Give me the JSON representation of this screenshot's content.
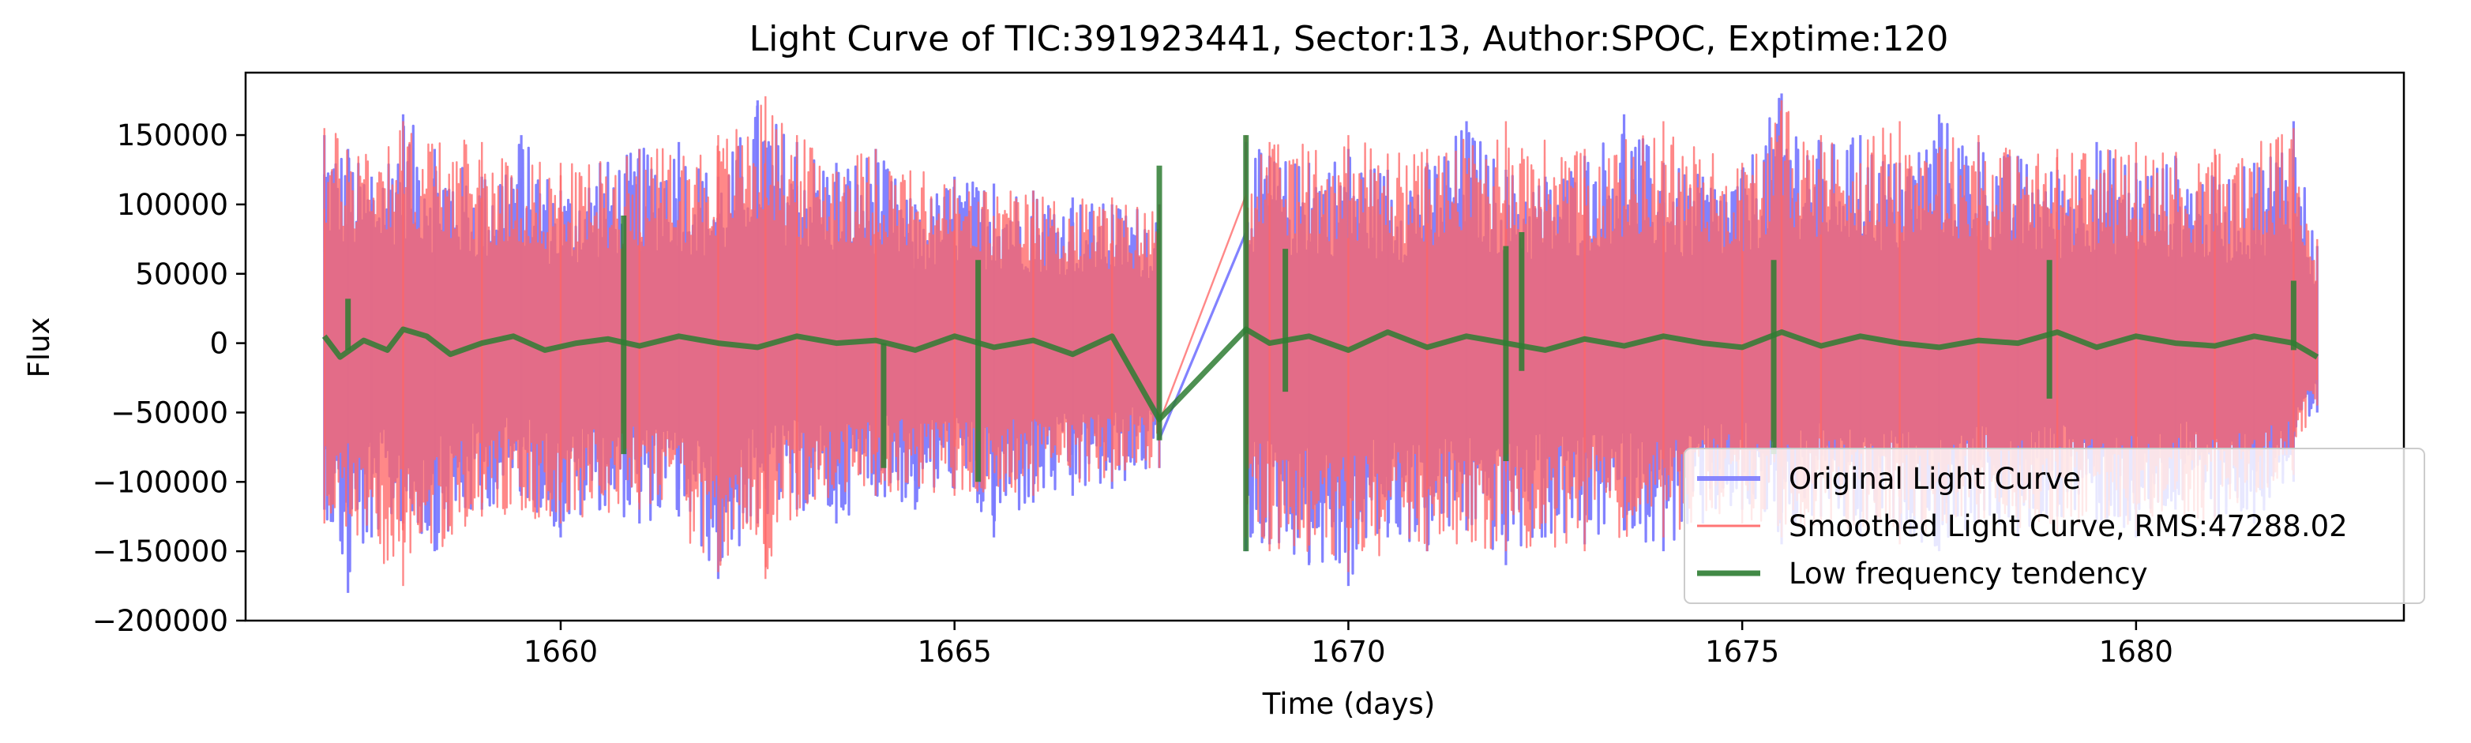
{
  "chart_data": {
    "type": "line",
    "title": "Light Curve of TIC:391923441, Sector:13, Author:SPOC, Exptime:120",
    "xlabel": "Time (days)",
    "ylabel": "Flux",
    "xlim": [
      1656.0,
      1683.4
    ],
    "ylim": [
      -200000,
      195000
    ],
    "xticks": [
      1660,
      1665,
      1670,
      1675,
      1680
    ],
    "xtick_labels": [
      "1660",
      "1665",
      "1670",
      "1675",
      "1680"
    ],
    "yticks": [
      -200000,
      -150000,
      -100000,
      -50000,
      0,
      50000,
      100000,
      150000
    ],
    "ytick_labels": [
      "−200000",
      "−150000",
      "−100000",
      "−50000",
      "0",
      "50000",
      "100000",
      "150000"
    ],
    "grid": false,
    "legend_position": "lower-right",
    "legend": [
      "Original Light Curve",
      "Smoothed Light Curve, RMS:47288.02",
      "Low frequency tendency"
    ],
    "colors": {
      "original": "#7b7bff",
      "smoothed": "#ff6666",
      "trend": "#2e7d32"
    },
    "segments": [
      [
        1657.0,
        1667.6
      ],
      [
        1668.7,
        1682.3
      ]
    ],
    "series": [
      {
        "name": "Original Light Curve",
        "x": [
          1657.0,
          1657.3,
          1657.6,
          1658.0,
          1658.4,
          1659.0,
          1659.5,
          1660.0,
          1660.5,
          1661.0,
          1661.5,
          1662.0,
          1662.5,
          1663.0,
          1663.5,
          1664.0,
          1664.5,
          1665.0,
          1665.5,
          1666.0,
          1666.5,
          1667.0,
          1667.6,
          1668.7,
          1669.0,
          1669.5,
          1670.0,
          1670.5,
          1671.0,
          1671.5,
          1672.0,
          1672.5,
          1673.0,
          1673.5,
          1674.0,
          1674.5,
          1675.0,
          1675.5,
          1676.0,
          1676.5,
          1677.0,
          1677.5,
          1678.0,
          1678.5,
          1679.0,
          1679.5,
          1680.0,
          1680.5,
          1681.0,
          1681.5,
          1682.0,
          1682.3
        ],
        "y_max": [
          150000,
          140000,
          120000,
          165000,
          140000,
          120000,
          150000,
          110000,
          130000,
          140000,
          145000,
          120000,
          175000,
          145000,
          130000,
          140000,
          100000,
          120000,
          115000,
          110000,
          105000,
          100000,
          100000,
          145000,
          135000,
          130000,
          140000,
          125000,
          130000,
          160000,
          125000,
          120000,
          135000,
          165000,
          130000,
          120000,
          125000,
          180000,
          145000,
          150000,
          130000,
          165000,
          145000,
          135000,
          125000,
          145000,
          130000,
          135000,
          120000,
          130000,
          160000,
          70000
        ],
        "y_min": [
          -120000,
          -180000,
          -140000,
          -130000,
          -150000,
          -120000,
          -110000,
          -140000,
          -120000,
          -130000,
          -125000,
          -170000,
          -130000,
          -120000,
          -130000,
          -110000,
          -120000,
          -105000,
          -140000,
          -115000,
          -110000,
          -105000,
          -90000,
          -150000,
          -145000,
          -160000,
          -175000,
          -140000,
          -150000,
          -135000,
          -160000,
          -140000,
          -145000,
          -135000,
          -150000,
          -130000,
          -120000,
          -145000,
          -125000,
          -140000,
          -135000,
          -150000,
          -130000,
          -140000,
          -125000,
          -130000,
          -140000,
          -120000,
          -125000,
          -130000,
          -100000,
          -50000
        ]
      },
      {
        "name": "Smoothed Light Curve, RMS:47288.02",
        "x": [
          1657.0,
          1658.0,
          1659.0,
          1660.0,
          1661.0,
          1662.0,
          1662.6,
          1663.0,
          1664.0,
          1665.0,
          1666.0,
          1667.0,
          1667.6,
          1668.7,
          1669.0,
          1670.0,
          1671.0,
          1672.0,
          1673.0,
          1674.0,
          1675.0,
          1675.5,
          1676.0,
          1677.0,
          1678.0,
          1679.0,
          1680.0,
          1681.0,
          1682.0,
          1682.3
        ],
        "y_max": [
          155000,
          160000,
          145000,
          130000,
          140000,
          150000,
          178000,
          150000,
          140000,
          118000,
          110000,
          105000,
          100000,
          150000,
          145000,
          150000,
          140000,
          160000,
          140000,
          160000,
          130000,
          175000,
          150000,
          160000,
          150000,
          140000,
          145000,
          140000,
          155000,
          75000
        ],
        "y_min": [
          -130000,
          -175000,
          -125000,
          -130000,
          -120000,
          -165000,
          -170000,
          -125000,
          -110000,
          -110000,
          -110000,
          -100000,
          -90000,
          -140000,
          -150000,
          -165000,
          -150000,
          -150000,
          -150000,
          -140000,
          -130000,
          -140000,
          -135000,
          -145000,
          -130000,
          -140000,
          -135000,
          -130000,
          -95000,
          -45000
        ]
      },
      {
        "name": "Low frequency tendency",
        "x": [
          1657.0,
          1657.2,
          1657.5,
          1657.8,
          1658.0,
          1658.3,
          1658.6,
          1659.0,
          1659.4,
          1659.8,
          1660.2,
          1660.6,
          1661.0,
          1661.5,
          1662.0,
          1662.5,
          1663.0,
          1663.5,
          1664.0,
          1664.5,
          1665.0,
          1665.5,
          1666.0,
          1666.5,
          1667.0,
          1667.6,
          1668.7,
          1669.0,
          1669.5,
          1670.0,
          1670.5,
          1671.0,
          1671.5,
          1672.0,
          1672.5,
          1673.0,
          1673.5,
          1674.0,
          1674.5,
          1675.0,
          1675.5,
          1676.0,
          1676.5,
          1677.0,
          1677.5,
          1678.0,
          1678.5,
          1679.0,
          1679.5,
          1680.0,
          1680.5,
          1681.0,
          1681.5,
          1682.0,
          1682.3
        ],
        "y": [
          5000,
          -10000,
          2000,
          -5000,
          10000,
          5000,
          -8000,
          0,
          5000,
          -5000,
          0,
          3000,
          -2000,
          5000,
          0,
          -3000,
          5000,
          0,
          2000,
          -5000,
          5000,
          -3000,
          2000,
          -8000,
          5000,
          -55000,
          10000,
          0,
          5000,
          -5000,
          8000,
          -3000,
          5000,
          0,
          -5000,
          3000,
          -2000,
          5000,
          0,
          -3000,
          8000,
          -2000,
          5000,
          0,
          -3000,
          2000,
          0,
          8000,
          -3000,
          5000,
          0,
          -2000,
          5000,
          0,
          -10000
        ],
        "spikes": [
          {
            "x": 1657.3,
            "ymin": -5000,
            "ymax": 32000
          },
          {
            "x": 1660.8,
            "ymin": -80000,
            "ymax": 92000
          },
          {
            "x": 1664.1,
            "ymin": -90000,
            "ymax": 0
          },
          {
            "x": 1665.3,
            "ymin": -100000,
            "ymax": 60000
          },
          {
            "x": 1667.6,
            "ymin": -70000,
            "ymax": 128000
          },
          {
            "x": 1668.7,
            "ymin": -150000,
            "ymax": 150000
          },
          {
            "x": 1669.2,
            "ymin": -35000,
            "ymax": 68000
          },
          {
            "x": 1672.0,
            "ymin": -85000,
            "ymax": 70000
          },
          {
            "x": 1672.2,
            "ymin": -20000,
            "ymax": 80000
          },
          {
            "x": 1675.4,
            "ymin": -80000,
            "ymax": 60000
          },
          {
            "x": 1678.9,
            "ymin": -40000,
            "ymax": 60000
          },
          {
            "x": 1682.0,
            "ymin": -5000,
            "ymax": 45000
          }
        ]
      }
    ]
  }
}
